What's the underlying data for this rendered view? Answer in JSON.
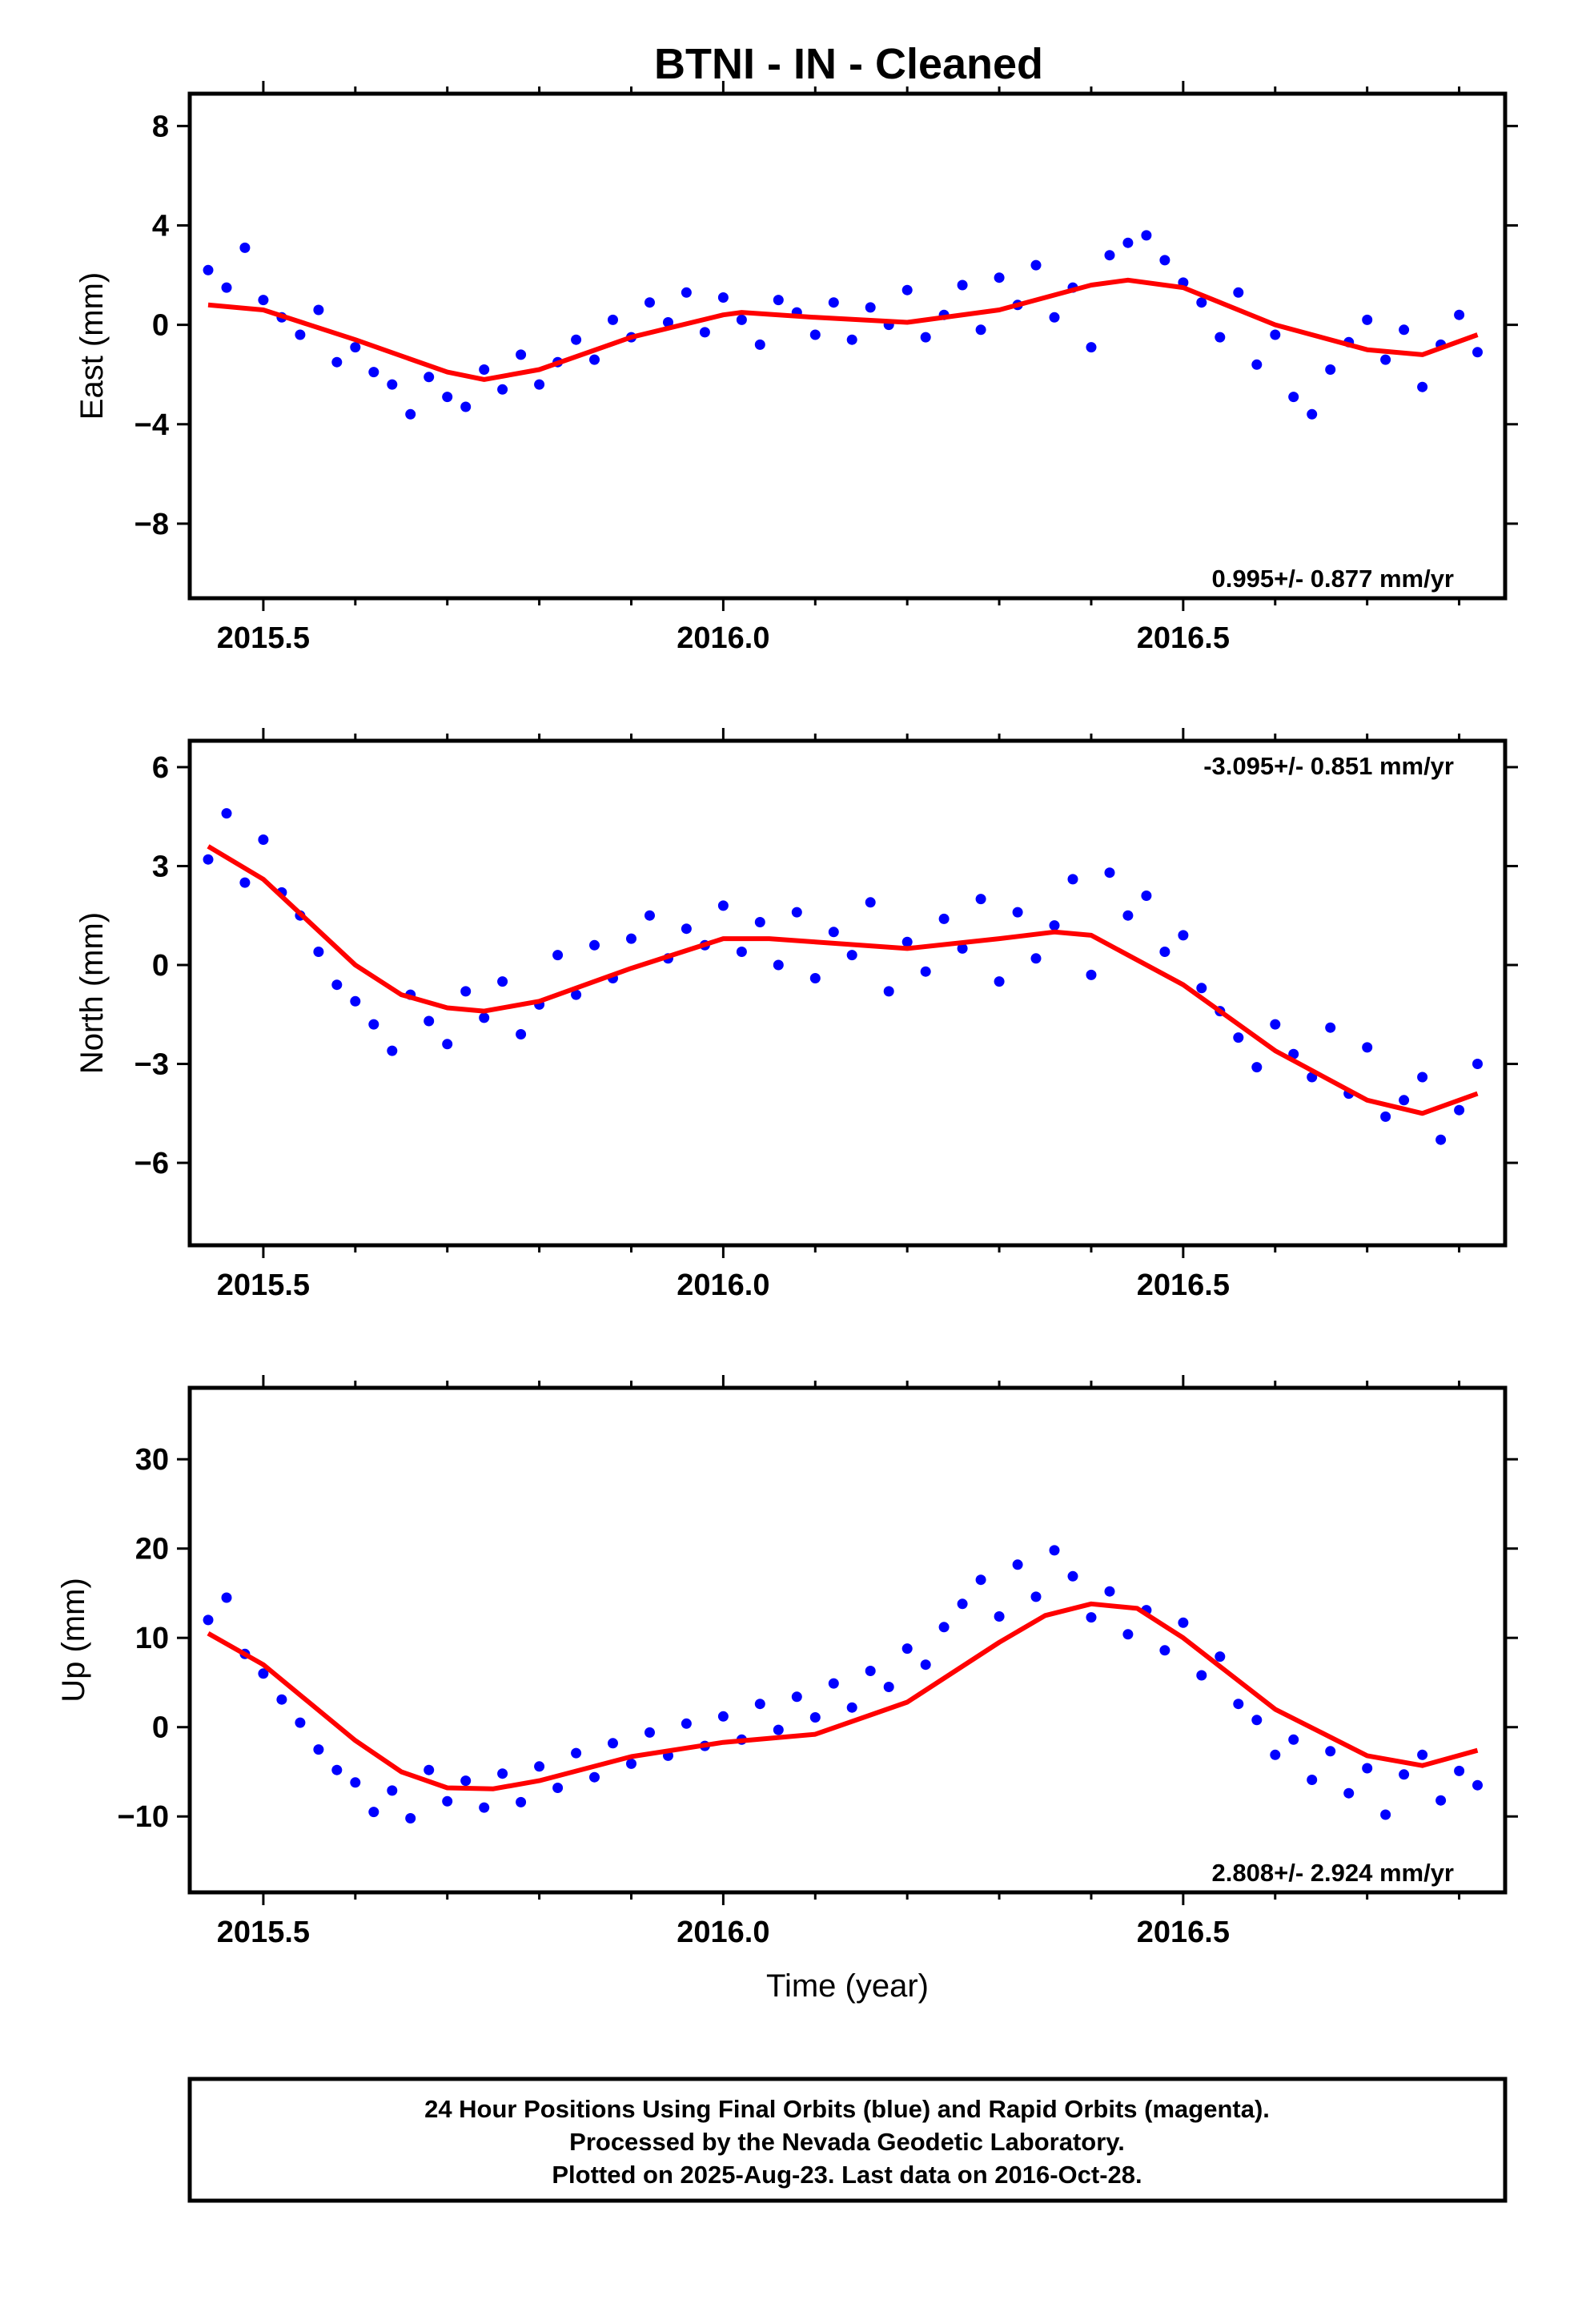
{
  "title": "BTNI  - IN - Cleaned",
  "footer": {
    "line1": "24 Hour Positions Using Final Orbits (blue) and Rapid Orbits (magenta).",
    "line2": "Processed by the Nevada Geodetic Laboratory.",
    "line3": "Plotted on 2025-Aug-23. Last data on 2016-Oct-28."
  },
  "colors": {
    "points": "#0000ff",
    "fit": "#ff0000",
    "frame": "#000000"
  },
  "chart_data": [
    {
      "type": "scatter",
      "title": "",
      "xlabel": "",
      "ylabel": "East (mm)",
      "xlim": [
        2015.42,
        2016.85
      ],
      "ylim": [
        -11,
        9.3
      ],
      "xticks": [
        2015.5,
        2016.0,
        2016.5
      ],
      "xtick_labels": [
        "2015.5",
        "2016.0",
        "2016.5"
      ],
      "yticks": [
        -8,
        -4,
        0,
        4,
        8
      ],
      "ytick_labels": [
        "−8",
        "−4",
        "0",
        "4",
        "8"
      ],
      "rate_label": "0.995+/- 0.877 mm/yr",
      "rate_position": "bottom-right",
      "series": [
        {
          "role": "daily positions",
          "x": [
            2015.44,
            2015.46,
            2015.48,
            2015.5,
            2015.52,
            2015.54,
            2015.56,
            2015.58,
            2015.6,
            2015.62,
            2015.64,
            2015.66,
            2015.68,
            2015.7,
            2015.72,
            2015.74,
            2015.76,
            2015.78,
            2015.8,
            2015.82,
            2015.84,
            2015.86,
            2015.88,
            2015.9,
            2015.92,
            2015.94,
            2015.96,
            2015.98,
            2016.0,
            2016.02,
            2016.04,
            2016.06,
            2016.08,
            2016.1,
            2016.12,
            2016.14,
            2016.16,
            2016.18,
            2016.2,
            2016.22,
            2016.24,
            2016.26,
            2016.28,
            2016.3,
            2016.32,
            2016.34,
            2016.36,
            2016.38,
            2016.4,
            2016.42,
            2016.44,
            2016.46,
            2016.48,
            2016.5,
            2016.52,
            2016.54,
            2016.56,
            2016.58,
            2016.6,
            2016.62,
            2016.64,
            2016.66,
            2016.68,
            2016.7,
            2016.72,
            2016.74,
            2016.76,
            2016.78,
            2016.8,
            2016.82
          ],
          "y": [
            2.2,
            1.5,
            3.1,
            1.0,
            0.3,
            -0.4,
            0.6,
            -1.5,
            -0.9,
            -1.9,
            -2.4,
            -3.6,
            -2.1,
            -2.9,
            -3.3,
            -1.8,
            -2.6,
            -1.2,
            -2.4,
            -1.5,
            -0.6,
            -1.4,
            0.2,
            -0.5,
            0.9,
            0.1,
            1.3,
            -0.3,
            1.1,
            0.2,
            -0.8,
            1.0,
            0.5,
            -0.4,
            0.9,
            -0.6,
            0.7,
            0.0,
            1.4,
            -0.5,
            0.4,
            1.6,
            -0.2,
            1.9,
            0.8,
            2.4,
            0.3,
            1.5,
            -0.9,
            2.8,
            3.3,
            3.6,
            2.6,
            1.7,
            0.9,
            -0.5,
            1.3,
            -1.6,
            -0.4,
            -2.9,
            -3.6,
            -1.8,
            -0.7,
            0.2,
            -1.4,
            -0.2,
            -2.5,
            -0.8,
            0.4,
            -1.1
          ]
        },
        {
          "role": "model fit",
          "x": [
            2015.44,
            2015.5,
            2015.6,
            2015.7,
            2015.74,
            2015.8,
            2015.9,
            2016.0,
            2016.02,
            2016.1,
            2016.2,
            2016.3,
            2016.4,
            2016.44,
            2016.5,
            2016.6,
            2016.7,
            2016.76,
            2016.82
          ],
          "y": [
            0.8,
            0.6,
            -0.6,
            -1.9,
            -2.2,
            -1.8,
            -0.5,
            0.4,
            0.5,
            0.3,
            0.1,
            0.6,
            1.6,
            1.8,
            1.5,
            0.0,
            -1.0,
            -1.2,
            -0.4
          ]
        }
      ]
    },
    {
      "type": "scatter",
      "title": "",
      "xlabel": "",
      "ylabel": "North (mm)",
      "xlim": [
        2015.42,
        2016.85
      ],
      "ylim": [
        -8.5,
        6.8
      ],
      "xticks": [
        2015.5,
        2016.0,
        2016.5
      ],
      "xtick_labels": [
        "2015.5",
        "2016.0",
        "2016.5"
      ],
      "yticks": [
        -6,
        -3,
        0,
        3,
        6
      ],
      "ytick_labels": [
        "−6",
        "−3",
        "0",
        "3",
        "6"
      ],
      "rate_label": "-3.095+/- 0.851 mm/yr",
      "rate_position": "top-right",
      "series": [
        {
          "role": "daily positions",
          "x": [
            2015.44,
            2015.46,
            2015.48,
            2015.5,
            2015.52,
            2015.54,
            2015.56,
            2015.58,
            2015.6,
            2015.62,
            2015.64,
            2015.66,
            2015.68,
            2015.7,
            2015.72,
            2015.74,
            2015.76,
            2015.78,
            2015.8,
            2015.82,
            2015.84,
            2015.86,
            2015.88,
            2015.9,
            2015.92,
            2015.94,
            2015.96,
            2015.98,
            2016.0,
            2016.02,
            2016.04,
            2016.06,
            2016.08,
            2016.1,
            2016.12,
            2016.14,
            2016.16,
            2016.18,
            2016.2,
            2016.22,
            2016.24,
            2016.26,
            2016.28,
            2016.3,
            2016.32,
            2016.34,
            2016.36,
            2016.38,
            2016.4,
            2016.42,
            2016.44,
            2016.46,
            2016.48,
            2016.5,
            2016.52,
            2016.54,
            2016.56,
            2016.58,
            2016.6,
            2016.62,
            2016.64,
            2016.66,
            2016.68,
            2016.7,
            2016.72,
            2016.74,
            2016.76,
            2016.78,
            2016.8,
            2016.82
          ],
          "y": [
            3.2,
            4.6,
            2.5,
            3.8,
            2.2,
            1.5,
            0.4,
            -0.6,
            -1.1,
            -1.8,
            -2.6,
            -0.9,
            -1.7,
            -2.4,
            -0.8,
            -1.6,
            -0.5,
            -2.1,
            -1.2,
            0.3,
            -0.9,
            0.6,
            -0.4,
            0.8,
            1.5,
            0.2,
            1.1,
            0.6,
            1.8,
            0.4,
            1.3,
            0.0,
            1.6,
            -0.4,
            1.0,
            0.3,
            1.9,
            -0.8,
            0.7,
            -0.2,
            1.4,
            0.5,
            2.0,
            -0.5,
            1.6,
            0.2,
            1.2,
            2.6,
            -0.3,
            2.8,
            1.5,
            2.1,
            0.4,
            0.9,
            -0.7,
            -1.4,
            -2.2,
            -3.1,
            -1.8,
            -2.7,
            -3.4,
            -1.9,
            -3.9,
            -2.5,
            -4.6,
            -4.1,
            -3.4,
            -5.3,
            -4.4,
            -3.0
          ]
        },
        {
          "role": "model fit",
          "x": [
            2015.44,
            2015.5,
            2015.55,
            2015.6,
            2015.65,
            2015.7,
            2015.74,
            2015.8,
            2015.9,
            2016.0,
            2016.05,
            2016.1,
            2016.2,
            2016.3,
            2016.36,
            2016.4,
            2016.5,
            2016.6,
            2016.7,
            2016.76,
            2016.82
          ],
          "y": [
            3.6,
            2.6,
            1.3,
            0.0,
            -0.9,
            -1.3,
            -1.4,
            -1.1,
            -0.1,
            0.8,
            0.8,
            0.7,
            0.5,
            0.8,
            1.0,
            0.9,
            -0.6,
            -2.6,
            -4.1,
            -4.5,
            -3.9
          ]
        }
      ]
    },
    {
      "type": "scatter",
      "title": "",
      "xlabel": "Time (year)",
      "ylabel": "Up (mm)",
      "xlim": [
        2015.42,
        2016.85
      ],
      "ylim": [
        -18.5,
        38
      ],
      "xticks": [
        2015.5,
        2016.0,
        2016.5
      ],
      "xtick_labels": [
        "2015.5",
        "2016.0",
        "2016.5"
      ],
      "yticks": [
        -10,
        0,
        10,
        20,
        30
      ],
      "ytick_labels": [
        "−10",
        "0",
        "10",
        "20",
        "30"
      ],
      "rate_label": "2.808+/- 2.924 mm/yr",
      "rate_position": "bottom-right",
      "series": [
        {
          "role": "daily positions",
          "x": [
            2015.44,
            2015.46,
            2015.48,
            2015.5,
            2015.52,
            2015.54,
            2015.56,
            2015.58,
            2015.6,
            2015.62,
            2015.64,
            2015.66,
            2015.68,
            2015.7,
            2015.72,
            2015.74,
            2015.76,
            2015.78,
            2015.8,
            2015.82,
            2015.84,
            2015.86,
            2015.88,
            2015.9,
            2015.92,
            2015.94,
            2015.96,
            2015.98,
            2016.0,
            2016.02,
            2016.04,
            2016.06,
            2016.08,
            2016.1,
            2016.12,
            2016.14,
            2016.16,
            2016.18,
            2016.2,
            2016.22,
            2016.24,
            2016.26,
            2016.28,
            2016.3,
            2016.32,
            2016.34,
            2016.36,
            2016.38,
            2016.4,
            2016.42,
            2016.44,
            2016.46,
            2016.48,
            2016.5,
            2016.52,
            2016.54,
            2016.56,
            2016.58,
            2016.6,
            2016.62,
            2016.64,
            2016.66,
            2016.68,
            2016.7,
            2016.72,
            2016.74,
            2016.76,
            2016.78,
            2016.8,
            2016.82
          ],
          "y": [
            12.0,
            14.5,
            8.2,
            6.0,
            3.1,
            0.5,
            -2.5,
            -4.8,
            -6.2,
            -9.5,
            -7.1,
            -10.2,
            -4.8,
            -8.3,
            -6.0,
            -9.0,
            -5.2,
            -8.4,
            -4.4,
            -6.8,
            -2.9,
            -5.6,
            -1.8,
            -4.1,
            -0.6,
            -3.2,
            0.4,
            -2.1,
            1.2,
            -1.4,
            2.6,
            -0.3,
            3.4,
            1.1,
            4.9,
            2.2,
            6.3,
            4.5,
            8.8,
            7.0,
            11.2,
            13.8,
            16.5,
            12.4,
            18.2,
            14.6,
            19.8,
            16.9,
            12.3,
            15.2,
            10.4,
            13.1,
            8.6,
            11.7,
            5.8,
            7.9,
            2.6,
            0.8,
            -3.1,
            -1.4,
            -5.9,
            -2.7,
            -7.4,
            -4.6,
            -9.8,
            -5.3,
            -3.1,
            -8.2,
            -4.9,
            -6.5
          ]
        },
        {
          "role": "model fit",
          "x": [
            2015.44,
            2015.5,
            2015.6,
            2015.65,
            2015.7,
            2015.75,
            2015.8,
            2015.9,
            2016.0,
            2016.1,
            2016.2,
            2016.3,
            2016.35,
            2016.4,
            2016.45,
            2016.5,
            2016.6,
            2016.7,
            2016.76,
            2016.82
          ],
          "y": [
            10.5,
            7.0,
            -1.5,
            -5.0,
            -6.8,
            -6.9,
            -6.0,
            -3.3,
            -1.7,
            -0.8,
            2.8,
            9.5,
            12.5,
            13.8,
            13.3,
            10.0,
            2.0,
            -3.2,
            -4.3,
            -2.6
          ]
        }
      ]
    }
  ]
}
